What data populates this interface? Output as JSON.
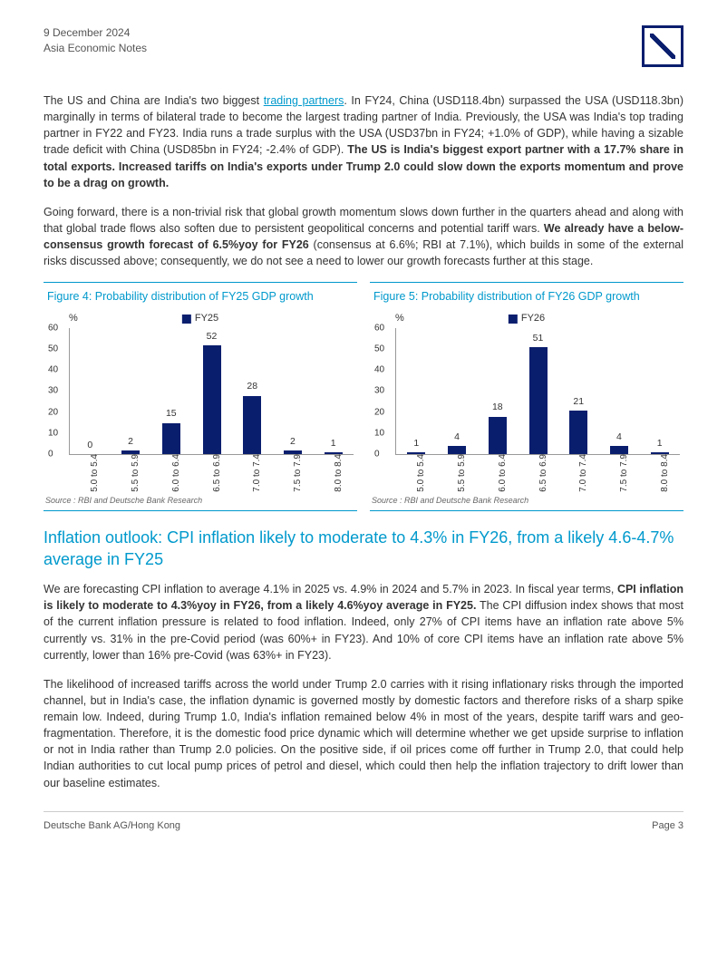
{
  "header": {
    "date": "9 December 2024",
    "series": "Asia Economic Notes"
  },
  "paragraphs": {
    "p1_pre": "The US and China are India's two biggest ",
    "p1_link": "trading partners",
    "p1_post": ". In FY24, China (USD118.4bn) surpassed the USA (USD118.3bn) marginally in terms of bilateral trade to become the largest trading partner of India. Previously, the USA was India's top trading partner in FY22 and FY23. India runs a trade surplus with the USA (USD37bn in FY24; +1.0% of GDP), while having a sizable trade deficit with China (USD85bn in FY24; -2.4% of GDP). ",
    "p1_bold": "The US is India's biggest export partner with a 17.7% share in total exports. Increased tariffs on India's exports under Trump 2.0 could slow down the exports momentum and prove to be a drag on growth.",
    "p2_pre": "Going forward, there is a non-trivial risk that global growth momentum slows down further in the quarters ahead and along with that global trade flows also soften due to persistent geopolitical concerns and potential tariff wars. ",
    "p2_bold": "We already have a below-consensus growth forecast of 6.5%yoy for FY26",
    "p2_post": " (consensus at 6.6%; RBI at 7.1%), which builds in some of the external risks discussed above; consequently, we do not see a need to lower our growth forecasts further at this stage.",
    "p3_pre": "We are forecasting CPI inflation to average 4.1% in 2025 vs. 4.9% in 2024 and 5.7% in 2023. In fiscal year terms, ",
    "p3_bold": "CPI inflation is likely to moderate to 4.3%yoy in FY26, from a likely 4.6%yoy average in FY25.",
    "p3_post": " The CPI diffusion index shows that most of the current inflation pressure is related to food inflation. Indeed, only 27% of CPI items have an inflation rate above 5% currently vs. 31% in the pre-Covid period (was 60%+ in FY23). And 10% of core CPI items have an inflation rate above 5% currently, lower than 16% pre-Covid (was 63%+ in FY23).",
    "p4": "The likelihood of increased tariffs across the world under Trump 2.0 carries with it rising inflationary risks through the imported channel, but in India's case, the inflation dynamic is governed mostly by domestic factors and therefore risks of a sharp spike remain low. Indeed, during Trump 1.0, India's inflation remained below 4% in most of the years, despite tariff wars and geo-fragmentation. Therefore, it is the domestic food price dynamic which will determine whether we get upside surprise to inflation or not in India rather than Trump 2.0 policies. On the positive side, if oil prices come off further in Trump 2.0, that could help Indian authorities to cut local pump prices of petrol and diesel, which could then help the inflation trajectory to drift lower than our baseline estimates."
  },
  "section_heading": "Inflation outlook: CPI inflation likely to moderate to 4.3% in FY26, from a likely 4.6-4.7% average in FY25",
  "figure4": {
    "type": "bar",
    "title": "Figure 4: Probability distribution of FY25 GDP growth",
    "legend_label": "FY25",
    "ylabel": "%",
    "ylim": [
      0,
      60
    ],
    "ytick_step": 10,
    "categories": [
      "5.0 to 5.4",
      "5.5 to 5.9",
      "6.0 to 6.4",
      "6.5 to 6.9",
      "7.0 to 7.4",
      "7.5 to 7.9",
      "8.0 to 8.4"
    ],
    "values": [
      0,
      2,
      15,
      52,
      28,
      2,
      1
    ],
    "bar_color": "#0a1e6e",
    "axis_color": "#999999",
    "text_color": "#333333",
    "background_color": "#ffffff",
    "source": "Source : RBI and Deutsche Bank Research"
  },
  "figure5": {
    "type": "bar",
    "title": "Figure 5: Probability distribution of FY26 GDP growth",
    "legend_label": "FY26",
    "ylabel": "%",
    "ylim": [
      0,
      60
    ],
    "ytick_step": 10,
    "categories": [
      "5.0 to 5.4",
      "5.5 to 5.9",
      "6.0 to 6.4",
      "6.5 to 6.9",
      "7.0 to 7.4",
      "7.5 to 7.9",
      "8.0 to 8.4"
    ],
    "values": [
      1,
      4,
      18,
      51,
      21,
      4,
      1
    ],
    "bar_color": "#0a1e6e",
    "axis_color": "#999999",
    "text_color": "#333333",
    "background_color": "#ffffff",
    "source": "Source : RBI and Deutsche Bank Research"
  },
  "footer": {
    "left": "Deutsche Bank AG/Hong Kong",
    "right": "Page 3"
  },
  "colors": {
    "brand_blue": "#0a1e6e",
    "accent_cyan": "#0099cc",
    "text": "#333333",
    "muted": "#666666"
  }
}
